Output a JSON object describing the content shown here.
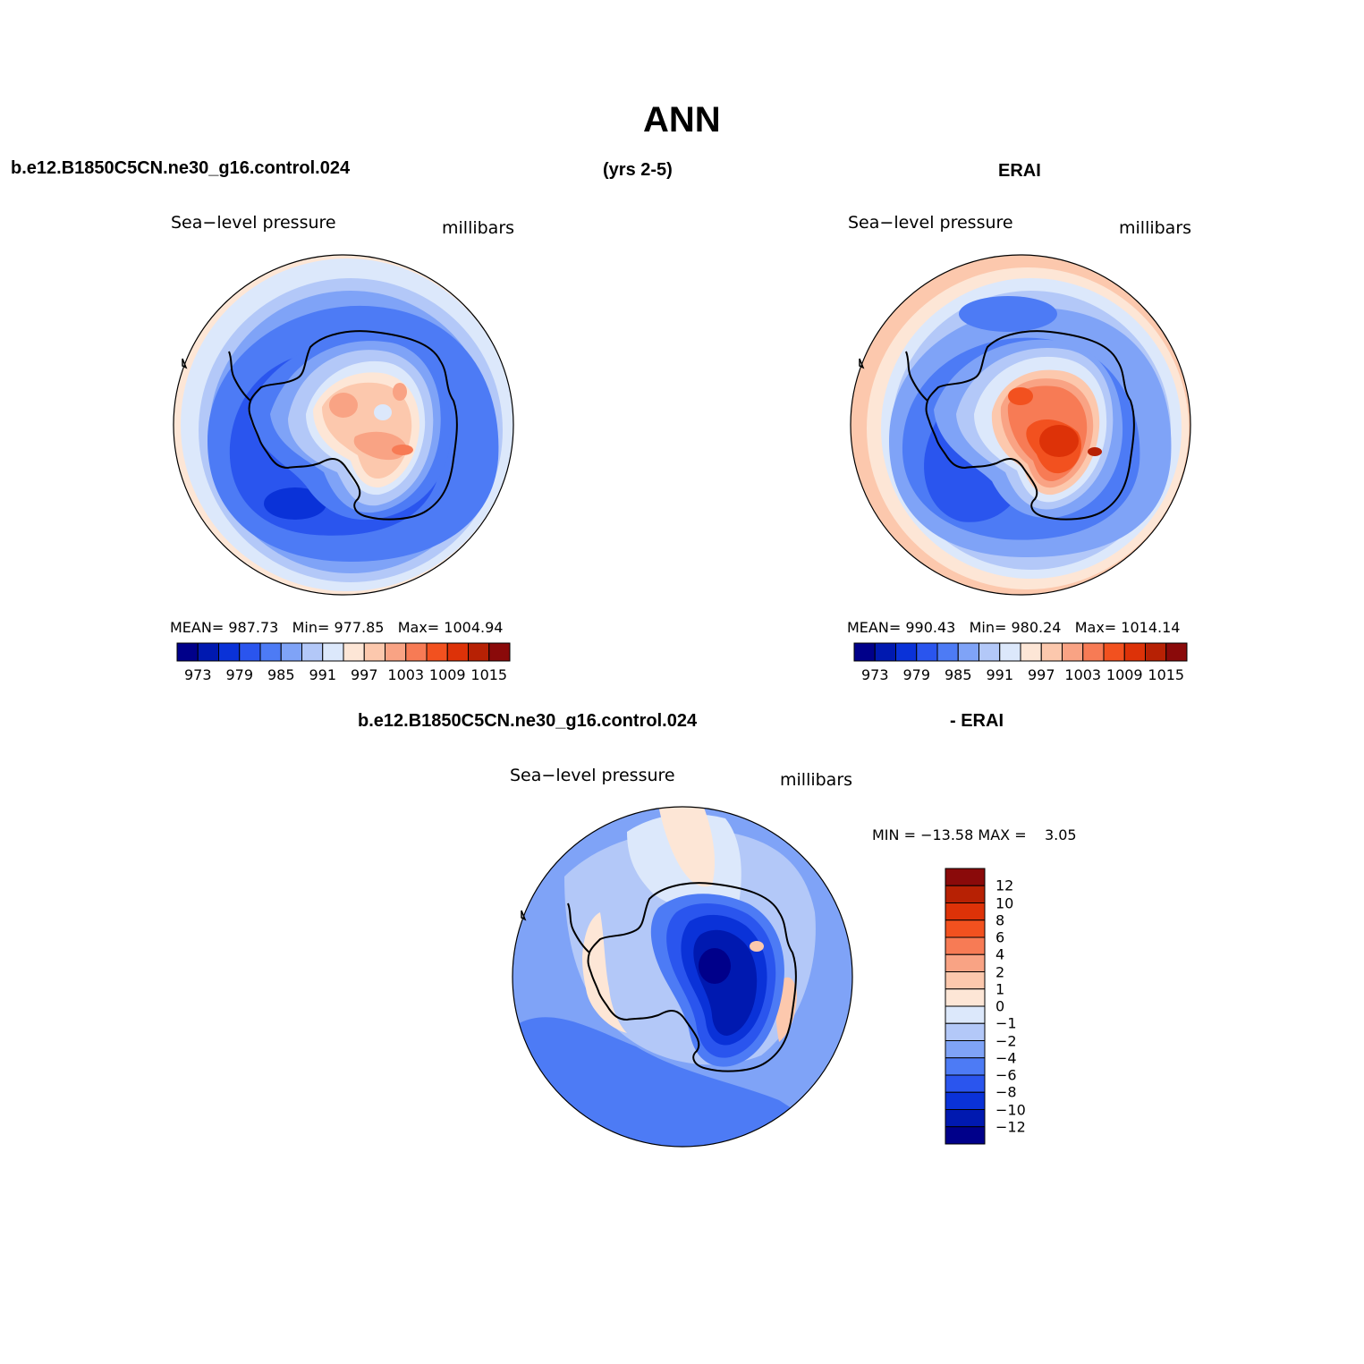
{
  "figure": {
    "title": "ANN",
    "case_name": "b.e12.B1850C5CN.ne30_g16.control.024",
    "years": "(yrs 2-5)",
    "reference": "ERAI",
    "diff_case_name": "b.e12.B1850C5CN.ne30_g16.control.024",
    "diff_reference": "- ERAI"
  },
  "panels": [
    {
      "id": "model",
      "variable": "Sea−level pressure",
      "units": "millibars",
      "stats": {
        "mean_label": "MEAN=",
        "mean": "987.73",
        "min_label": "Min=",
        "min": "977.85",
        "max_label": "Max=",
        "max": "1004.94"
      }
    },
    {
      "id": "obs",
      "variable": "Sea−level pressure",
      "units": "millibars",
      "stats": {
        "mean_label": "MEAN=",
        "mean": "990.43",
        "min_label": "Min=",
        "min": "980.24",
        "max_label": "Max=",
        "max": "1014.14"
      }
    },
    {
      "id": "diff",
      "variable": "Sea−level pressure",
      "units": "millibars",
      "stats": {
        "min_label": "MIN =",
        "min": "−13.58",
        "max_label": "MAX =",
        "max": "3.05"
      }
    }
  ],
  "colorbar_abs": {
    "colors": [
      "#00008a",
      "#0019b0",
      "#0a32d8",
      "#2a55ee",
      "#4d7bf5",
      "#7fa3f7",
      "#b3c8f8",
      "#dce8fb",
      "#fde6d6",
      "#fcc8ad",
      "#f9a384",
      "#f77b55",
      "#f2511f",
      "#dd3208",
      "#b72104",
      "#8a0a0a"
    ],
    "tick_labels": [
      "973",
      "979",
      "985",
      "991",
      "997",
      "1003",
      "1009",
      "1015"
    ]
  },
  "colorbar_diff": {
    "colors": [
      "#00008a",
      "#0019b0",
      "#0a32d8",
      "#2a55ee",
      "#4d7bf5",
      "#7fa3f7",
      "#b3c8f8",
      "#dce8fb",
      "#fde6d6",
      "#fcc8ad",
      "#f9a384",
      "#f77b55",
      "#f2511f",
      "#dd3208",
      "#b72104",
      "#8a0a0a"
    ],
    "tick_labels": [
      "12",
      "10",
      "8",
      "6",
      "4",
      "2",
      "1",
      "0",
      "−1",
      "−2",
      "−4",
      "−6",
      "−8",
      "−10",
      "−12"
    ]
  }
}
